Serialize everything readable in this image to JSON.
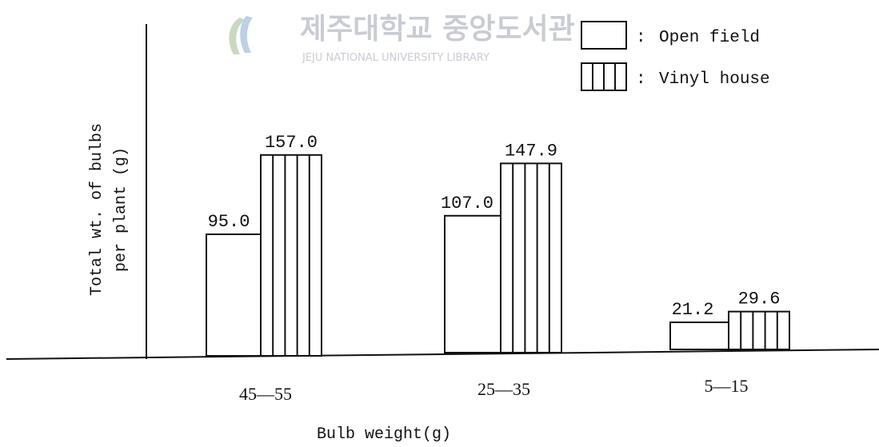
{
  "chart_data": {
    "type": "bar",
    "categories": [
      "45—55",
      "25—35",
      "5—15"
    ],
    "series": [
      {
        "name": "Open field",
        "values": [
          95.0,
          107.0,
          21.2
        ],
        "labels": [
          "95.0",
          "107.0",
          "21.2"
        ],
        "pattern": "plain"
      },
      {
        "name": "Vinyl house",
        "values": [
          157.0,
          147.9,
          29.6
        ],
        "labels": [
          "157.0",
          "147.9",
          "29.6"
        ],
        "pattern": "vertical-stripes"
      }
    ],
    "xlabel": "Bulb weight(g)",
    "ylabel_line1": "Total wt. of bulbs",
    "ylabel_line2": "per plant (g)",
    "ylim": [
      0,
      180
    ],
    "grid": false,
    "legend": {
      "position": "top-right",
      "separator": ":"
    }
  },
  "watermark": {
    "text_ko": "제주대학교 중앙도서관",
    "text_en": "JEJU NATIONAL UNIVERSITY LIBRARY"
  },
  "colors": {
    "ink": "#111111",
    "watermark": "#c9ccd3"
  }
}
